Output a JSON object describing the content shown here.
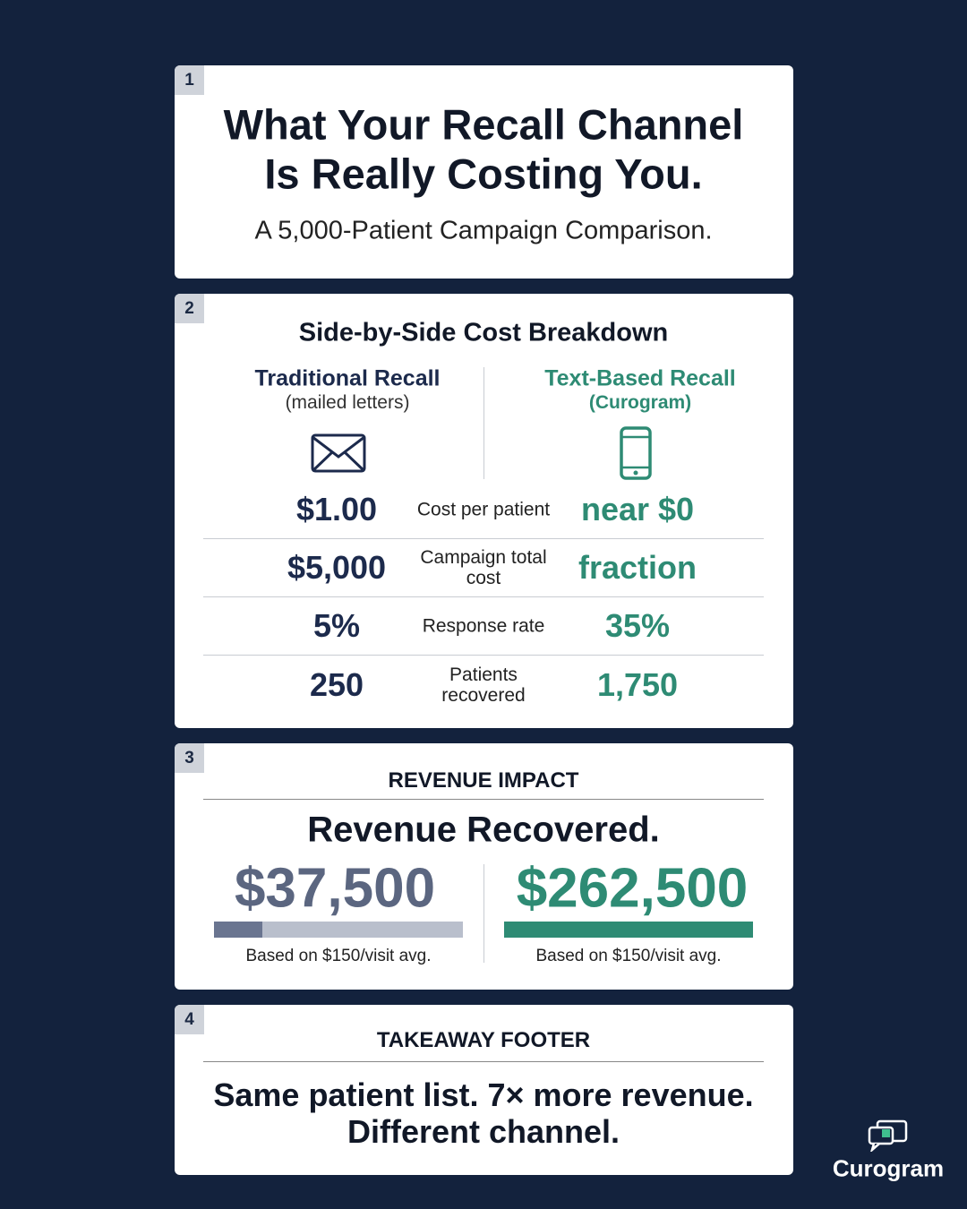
{
  "sections": [
    {
      "number": "1",
      "title_lines": [
        "What Your Recall Channel",
        "Is Really Costing You."
      ],
      "subtitle": "A 5,000-Patient Campaign Comparison."
    },
    {
      "number": "2",
      "heading": "Side-by-Side Cost Breakdown",
      "columns": [
        {
          "title": "Traditional Recall",
          "subtitle": "(mailed letters)"
        },
        {
          "title": "Text-Based Recall",
          "subtitle": "(Curogram)"
        }
      ],
      "rows": [
        {
          "left": "$1.00",
          "label": "Cost per patient",
          "right": "near $0"
        },
        {
          "left": "$5,000",
          "label": "Campaign total cost",
          "right": "fraction"
        },
        {
          "left": "5%",
          "label": "Response rate",
          "right": "35%"
        },
        {
          "left": "250",
          "label": "Patients recovered",
          "right": "1,750"
        }
      ]
    },
    {
      "number": "3",
      "label": "REVENUE IMPACT",
      "heading": "Revenue Recovered.",
      "columns": [
        {
          "value": "$37,500",
          "caption": "Based on $150/visit avg."
        },
        {
          "value": "$262,500",
          "caption": "Based on $150/visit avg."
        }
      ]
    },
    {
      "number": "4",
      "label": "TAKEAWAY FOOTER",
      "lines": [
        "Same patient list. 7× more revenue.",
        "Different channel."
      ]
    }
  ],
  "logo": "Curogram"
}
